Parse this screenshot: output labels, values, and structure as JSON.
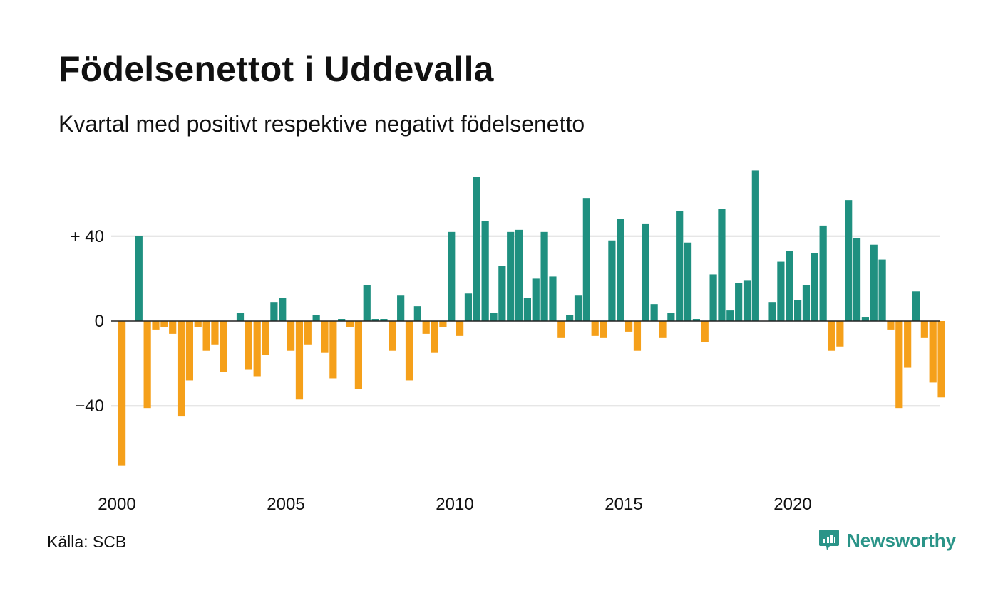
{
  "title": "Födelsenettot i Uddevalla",
  "subtitle": "Kvartal med positivt respektive negativt födelsenetto",
  "source": "Källa: SCB",
  "brand": "Newsworthy",
  "brand_icon": "bar-chart-speech-bubble-icon",
  "colors": {
    "positive": "#1f9080",
    "negative": "#f5a01a",
    "grid": "#dddddd",
    "zero_line": "#222222",
    "brand": "#2a9488"
  },
  "chart_data": {
    "type": "bar",
    "title": "Födelsenettot i Uddevalla",
    "subtitle": "Kvartal med positivt respektive negativt födelsenetto",
    "xlabel": "",
    "ylabel": "",
    "x_start": "2000 Q1",
    "x_tick_years": [
      2000,
      2005,
      2010,
      2015,
      2020
    ],
    "y_ticks": [
      {
        "value": 40,
        "label": "+ 40"
      },
      {
        "value": 0,
        "label": "0"
      },
      {
        "value": -40,
        "label": "−40"
      }
    ],
    "ylim": [
      -75,
      75
    ],
    "grid": true,
    "legend": "none",
    "values": [
      -68,
      0,
      40,
      -41,
      -4,
      -3,
      -6,
      -45,
      -28,
      -3,
      -14,
      -11,
      -24,
      0,
      4,
      -23,
      -26,
      -16,
      9,
      11,
      -14,
      -37,
      -11,
      3,
      -15,
      -27,
      1,
      -3,
      -32,
      17,
      1,
      1,
      -14,
      12,
      -28,
      7,
      -6,
      -15,
      -3,
      42,
      -7,
      13,
      68,
      47,
      4,
      26,
      42,
      43,
      11,
      20,
      42,
      21,
      -8,
      3,
      12,
      58,
      -7,
      -8,
      38,
      48,
      -5,
      -14,
      46,
      8,
      -8,
      4,
      52,
      37,
      1,
      -10,
      22,
      53,
      5,
      18,
      19,
      71,
      0,
      9,
      28,
      33,
      10,
      17,
      32,
      45,
      -14,
      -12,
      57,
      39,
      2,
      36,
      29,
      -4,
      -41,
      -22,
      14,
      -8,
      -29,
      -36
    ]
  }
}
